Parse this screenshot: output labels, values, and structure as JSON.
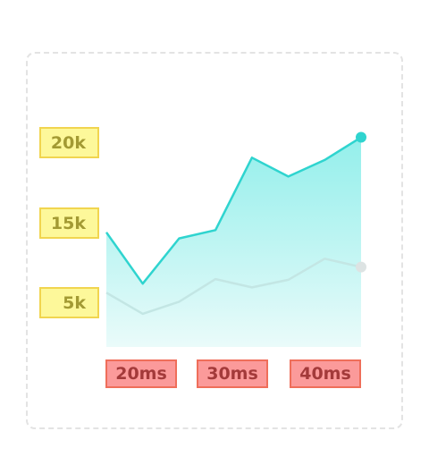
{
  "chart_data": {
    "type": "area",
    "ytick_labels": [
      "20k",
      "15k",
      "5k"
    ],
    "xtick_labels": [
      "20ms",
      "30ms",
      "40ms"
    ],
    "x": [
      1,
      2,
      3,
      4,
      5,
      6,
      7,
      8
    ],
    "series": [
      {
        "values": [
          15.2,
          8.4,
          14.4,
          15.5,
          25.1,
          22.6,
          24.8,
          27.8
        ],
        "color": "#2fd4cf",
        "fill": "#9af0ec",
        "style": "area"
      },
      {
        "values": [
          7.2,
          4.4,
          6.0,
          9.0,
          7.9,
          8.9,
          11.7,
          10.6
        ],
        "color": "#c3e6e4",
        "style": "line"
      }
    ],
    "ylim": [
      0,
      30
    ],
    "xlim": [
      1,
      8
    ],
    "grid": false,
    "colors": {
      "ytick_bg": "#fdf89a",
      "ytick_border": "#f1d54f",
      "ytick_text": "#a39a33",
      "xtick_bg": "#fb9a9a",
      "xtick_border": "#ef6e5a",
      "xtick_text": "#a33a3a",
      "card_border": "#e3e3e3"
    }
  }
}
